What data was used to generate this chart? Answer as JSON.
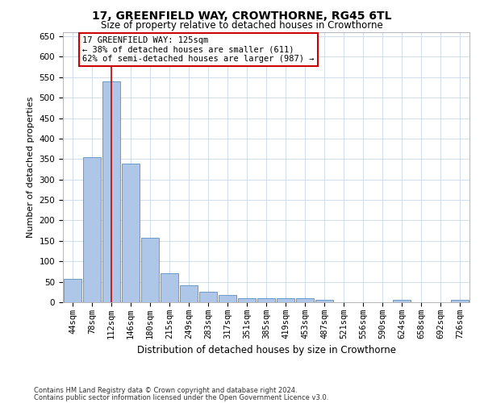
{
  "title": "17, GREENFIELD WAY, CROWTHORNE, RG45 6TL",
  "subtitle": "Size of property relative to detached houses in Crowthorne",
  "xlabel": "Distribution of detached houses by size in Crowthorne",
  "ylabel": "Number of detached properties",
  "categories": [
    "44sqm",
    "78sqm",
    "112sqm",
    "146sqm",
    "180sqm",
    "215sqm",
    "249sqm",
    "283sqm",
    "317sqm",
    "351sqm",
    "385sqm",
    "419sqm",
    "453sqm",
    "487sqm",
    "521sqm",
    "556sqm",
    "590sqm",
    "624sqm",
    "658sqm",
    "692sqm",
    "726sqm"
  ],
  "values": [
    58,
    355,
    540,
    338,
    157,
    70,
    42,
    25,
    17,
    10,
    10,
    9,
    9,
    5,
    0,
    0,
    0,
    5,
    0,
    0,
    5
  ],
  "bar_color": "#aec6e8",
  "bar_edge_color": "#5a8fc4",
  "ylim": [
    0,
    660
  ],
  "yticks": [
    0,
    50,
    100,
    150,
    200,
    250,
    300,
    350,
    400,
    450,
    500,
    550,
    600,
    650
  ],
  "vline_x": 2,
  "vline_color": "#cc0000",
  "annotation_text": "17 GREENFIELD WAY: 125sqm\n← 38% of detached houses are smaller (611)\n62% of semi-detached houses are larger (987) →",
  "annotation_box_color": "#ffffff",
  "annotation_border_color": "#cc0000",
  "footer_line1": "Contains HM Land Registry data © Crown copyright and database right 2024.",
  "footer_line2": "Contains public sector information licensed under the Open Government Licence v3.0.",
  "background_color": "#ffffff",
  "grid_color": "#c8d8ea",
  "title_fontsize": 10,
  "subtitle_fontsize": 8.5,
  "ylabel_fontsize": 8,
  "xlabel_fontsize": 8.5,
  "tick_fontsize": 7.5,
  "annot_fontsize": 7.5,
  "footer_fontsize": 6
}
